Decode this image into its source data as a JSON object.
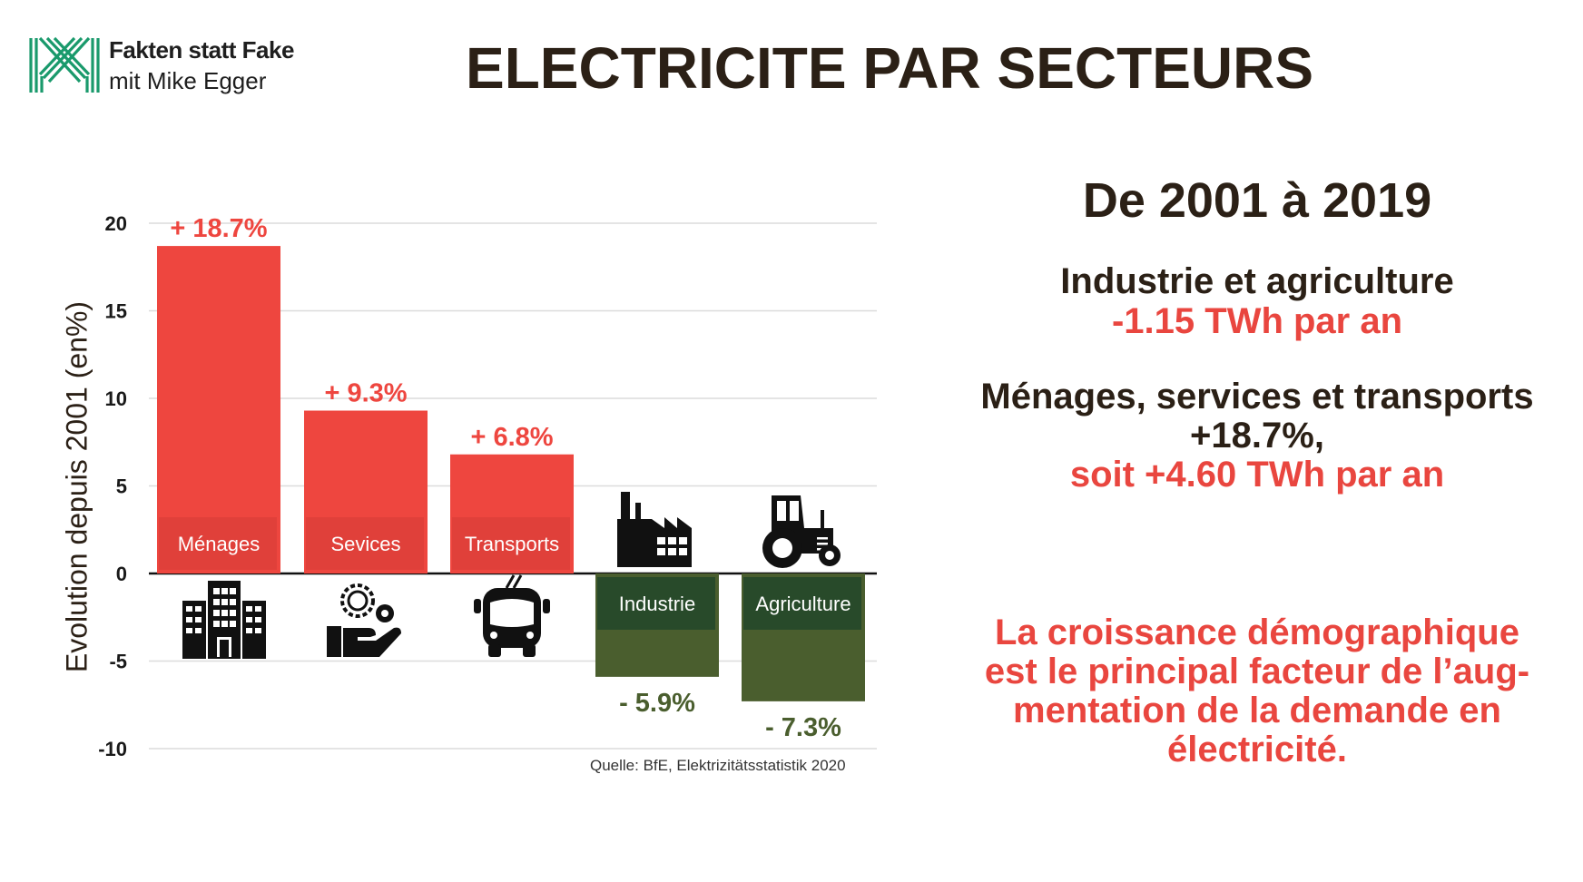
{
  "brand": {
    "line1": "Fakten statt Fake",
    "line2": "mit Mike Egger",
    "logo_color": "#1a9a6c"
  },
  "title": "ELECTRICITE PAR SECTEURS",
  "colors": {
    "positive": "#ee463f",
    "positive_label_box": "#e0403a",
    "negative": "#4a5e2e",
    "negative_label_box": "#284a2a",
    "negative_text": "#4a5e2e",
    "text_dark": "#2b2016",
    "accent_red": "#e9463f"
  },
  "chart_data": {
    "type": "bar",
    "title": "",
    "xlabel": "",
    "ylabel": "Evolution depuis 2001 (en%)",
    "ylim": [
      -10,
      20
    ],
    "yticks": [
      20,
      15,
      10,
      5,
      0,
      -5,
      -10
    ],
    "grid": true,
    "categories": [
      "Ménages",
      "Sevices",
      "Transports",
      "Industrie",
      "Agriculture"
    ],
    "values": [
      18.7,
      9.3,
      6.8,
      -5.9,
      -7.3
    ],
    "data_labels": [
      "+ 18.7%",
      "+ 9.3%",
      "+ 6.8%",
      "- 5.9%",
      "- 7.3%"
    ],
    "icons": [
      "building-icon",
      "gears-hand-icon",
      "trolleybus-icon",
      "factory-icon",
      "tractor-icon"
    ],
    "source": "Quelle:  BfE, Elektrizitätsstatistik 2020"
  },
  "summary": {
    "period": "De 2001 à 2019",
    "industry_heading": "Industrie et agriculture",
    "industry_value": "-1.15 TWh par an",
    "households_heading": "Ménages, services et transports",
    "households_pct": "+18.7%,",
    "households_value": "soit +4.60 TWh par an",
    "conclusion_lines": [
      "La croissance démographique",
      "est le principal facteur de l’aug-",
      "mentation de la demande en",
      "électricité."
    ]
  }
}
